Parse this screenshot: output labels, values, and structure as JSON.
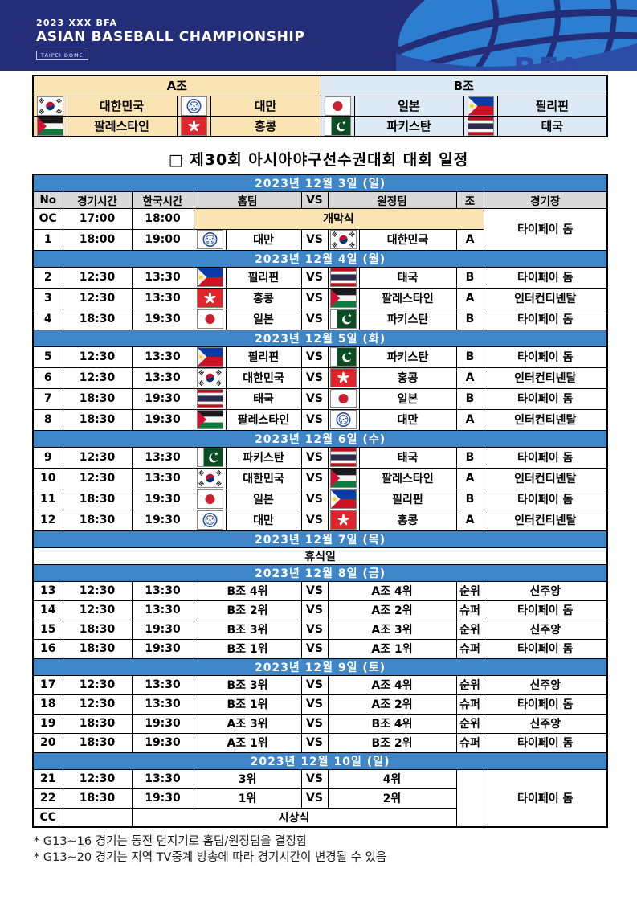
{
  "colors": {
    "banner_navy": "#232d78",
    "art_blue": "#2d7ed1",
    "art_swoosh": "#2c4da6",
    "date_band_blue": "#3f86c8",
    "header_gray": "#d9d9d9",
    "group_a_tan": "#fbe4b4",
    "group_b_blue": "#dde9f5",
    "border": "#000000"
  },
  "header": {
    "line1": "2023 XXX BFA",
    "line2": "ASIAN BASEBALL CHAMPIONSHIP",
    "badge": "TAIPEI DOME",
    "logo_text": "BFA"
  },
  "groups": {
    "a": {
      "label": "A조",
      "teams": [
        {
          "flag": "kr",
          "name": "대한민국"
        },
        {
          "flag": "tw",
          "name": "대만"
        },
        {
          "flag": "ps",
          "name": "팔레스타인"
        },
        {
          "flag": "hk",
          "name": "홍콩"
        }
      ]
    },
    "b": {
      "label": "B조",
      "teams": [
        {
          "flag": "jp",
          "name": "일본"
        },
        {
          "flag": "ph",
          "name": "필리핀"
        },
        {
          "flag": "pk",
          "name": "파키스탄"
        },
        {
          "flag": "th",
          "name": "태국"
        }
      ]
    }
  },
  "title": "□ 제30회 아시아야구선수권대회 대회 일정",
  "schedule": {
    "columns": [
      "No",
      "경기시간",
      "한국시간",
      "홈팀",
      "VS",
      "원정팀",
      "조",
      "경기장"
    ],
    "vs_label": "VS",
    "sections": [
      {
        "date": "2023년 12월 3일 (일)",
        "rows": [
          {
            "type": "ceremony",
            "no": "OC",
            "t1": "17:00",
            "t2": "18:00",
            "label": "개막식",
            "venue": "타이페이 돔",
            "venue_rowspan": 2
          },
          {
            "type": "match",
            "no": "1",
            "t1": "18:00",
            "t2": "19:00",
            "home": {
              "flag": "tw",
              "name": "대만"
            },
            "away": {
              "flag": "kr",
              "name": "대한민국"
            },
            "group": "A",
            "venue": null
          }
        ]
      },
      {
        "date": "2023년 12월 4일 (월)",
        "rows": [
          {
            "type": "match",
            "no": "2",
            "t1": "12:30",
            "t2": "13:30",
            "home": {
              "flag": "ph",
              "name": "필리핀"
            },
            "away": {
              "flag": "th",
              "name": "태국"
            },
            "group": "B",
            "venue": "타이페이 돔"
          },
          {
            "type": "match",
            "no": "3",
            "t1": "12:30",
            "t2": "13:30",
            "home": {
              "flag": "hk",
              "name": "홍콩"
            },
            "away": {
              "flag": "ps",
              "name": "팔레스타인"
            },
            "group": "A",
            "venue": "인터컨티넨탈"
          },
          {
            "type": "match",
            "no": "4",
            "t1": "18:30",
            "t2": "19:30",
            "home": {
              "flag": "jp",
              "name": "일본"
            },
            "away": {
              "flag": "pk",
              "name": "파키스탄"
            },
            "group": "B",
            "venue": "타이페이 돔"
          }
        ]
      },
      {
        "date": "2023년 12월 5일 (화)",
        "rows": [
          {
            "type": "match",
            "no": "5",
            "t1": "12:30",
            "t2": "13:30",
            "home": {
              "flag": "ph",
              "name": "필리핀"
            },
            "away": {
              "flag": "pk",
              "name": "파키스탄"
            },
            "group": "B",
            "venue": "타이페이 돔"
          },
          {
            "type": "match",
            "no": "6",
            "t1": "12:30",
            "t2": "13:30",
            "home": {
              "flag": "kr",
              "name": "대한민국"
            },
            "away": {
              "flag": "hk",
              "name": "홍콩"
            },
            "group": "A",
            "venue": "인터컨티넨탈"
          },
          {
            "type": "match",
            "no": "7",
            "t1": "18:30",
            "t2": "19:30",
            "home": {
              "flag": "th",
              "name": "태국"
            },
            "away": {
              "flag": "jp",
              "name": "일본"
            },
            "group": "B",
            "venue": "타이페이 돔"
          },
          {
            "type": "match",
            "no": "8",
            "t1": "18:30",
            "t2": "19:30",
            "home": {
              "flag": "ps",
              "name": "팔레스타인"
            },
            "away": {
              "flag": "tw",
              "name": "대만"
            },
            "group": "A",
            "venue": "인터컨티넨탈"
          }
        ]
      },
      {
        "date": "2023년 12월 6일 (수)",
        "rows": [
          {
            "type": "match",
            "no": "9",
            "t1": "12:30",
            "t2": "13:30",
            "home": {
              "flag": "pk",
              "name": "파키스탄"
            },
            "away": {
              "flag": "th",
              "name": "태국"
            },
            "group": "B",
            "venue": "타이페이 돔"
          },
          {
            "type": "match",
            "no": "10",
            "t1": "12:30",
            "t2": "13:30",
            "home": {
              "flag": "kr",
              "name": "대한민국"
            },
            "away": {
              "flag": "ps",
              "name": "팔레스타인"
            },
            "group": "A",
            "venue": "인터컨티넨탈"
          },
          {
            "type": "match",
            "no": "11",
            "t1": "18:30",
            "t2": "19:30",
            "home": {
              "flag": "jp",
              "name": "일본"
            },
            "away": {
              "flag": "ph",
              "name": "필리핀"
            },
            "group": "B",
            "venue": "타이페이 돔"
          },
          {
            "type": "match",
            "no": "12",
            "t1": "18:30",
            "t2": "19:30",
            "home": {
              "flag": "tw",
              "name": "대만"
            },
            "away": {
              "flag": "hk",
              "name": "홍콩"
            },
            "group": "A",
            "venue": "인터컨티넨탈"
          }
        ]
      },
      {
        "date": "2023년 12월 7일 (목)",
        "rows": [
          {
            "type": "rest",
            "label": "휴식일"
          }
        ]
      },
      {
        "date": "2023년 12월 8일 (금)",
        "rows": [
          {
            "type": "placement",
            "no": "13",
            "t1": "12:30",
            "t2": "13:30",
            "home_text": "B조 4위",
            "away_text": "A조 4위",
            "group": "순위",
            "venue": "신주앙"
          },
          {
            "type": "placement",
            "no": "14",
            "t1": "12:30",
            "t2": "13:30",
            "home_text": "B조 2위",
            "away_text": "A조 2위",
            "group": "슈퍼",
            "venue": "타이페이 돔"
          },
          {
            "type": "placement",
            "no": "15",
            "t1": "18:30",
            "t2": "19:30",
            "home_text": "B조 3위",
            "away_text": "A조 3위",
            "group": "순위",
            "venue": "신주앙"
          },
          {
            "type": "placement",
            "no": "16",
            "t1": "18:30",
            "t2": "19:30",
            "home_text": "B조 1위",
            "away_text": "A조 1위",
            "group": "슈퍼",
            "venue": "타이페이 돔"
          }
        ]
      },
      {
        "date": "2023년 12월 9일 (토)",
        "rows": [
          {
            "type": "placement",
            "no": "17",
            "t1": "12:30",
            "t2": "13:30",
            "home_text": "B조 3위",
            "away_text": "A조 4위",
            "group": "순위",
            "venue": "신주앙"
          },
          {
            "type": "placement",
            "no": "18",
            "t1": "12:30",
            "t2": "13:30",
            "home_text": "B조 1위",
            "away_text": "A조 2위",
            "group": "슈퍼",
            "venue": "타이페이 돔"
          },
          {
            "type": "placement",
            "no": "19",
            "t1": "18:30",
            "t2": "19:30",
            "home_text": "A조 3위",
            "away_text": "B조 4위",
            "group": "순위",
            "venue": "신주앙"
          },
          {
            "type": "placement",
            "no": "20",
            "t1": "18:30",
            "t2": "19:30",
            "home_text": "A조 1위",
            "away_text": "B조 2위",
            "group": "슈퍼",
            "venue": "타이페이 돔"
          }
        ]
      },
      {
        "date": "2023년 12월 10일 (일)",
        "rows": [
          {
            "type": "placement",
            "no": "21",
            "t1": "12:30",
            "t2": "13:30",
            "home_text": "3위",
            "away_text": "4위",
            "group": "",
            "group_rowspan": 3,
            "venue": "타이페이 돔",
            "venue_rowspan": 3
          },
          {
            "type": "placement",
            "no": "22",
            "t1": "18:30",
            "t2": "19:30",
            "home_text": "1위",
            "away_text": "2위",
            "group": null,
            "venue": null
          },
          {
            "type": "awards",
            "no": "CC",
            "t1": "",
            "label": "시상식"
          }
        ]
      }
    ]
  },
  "footnotes": [
    "* G13~16 경기는 동전 던지기로 홈팀/원정팀을 결정함",
    "* G13~20 경기는 지역 TV중계 방송에 따라 경기시간이 변경될 수 있음"
  ]
}
